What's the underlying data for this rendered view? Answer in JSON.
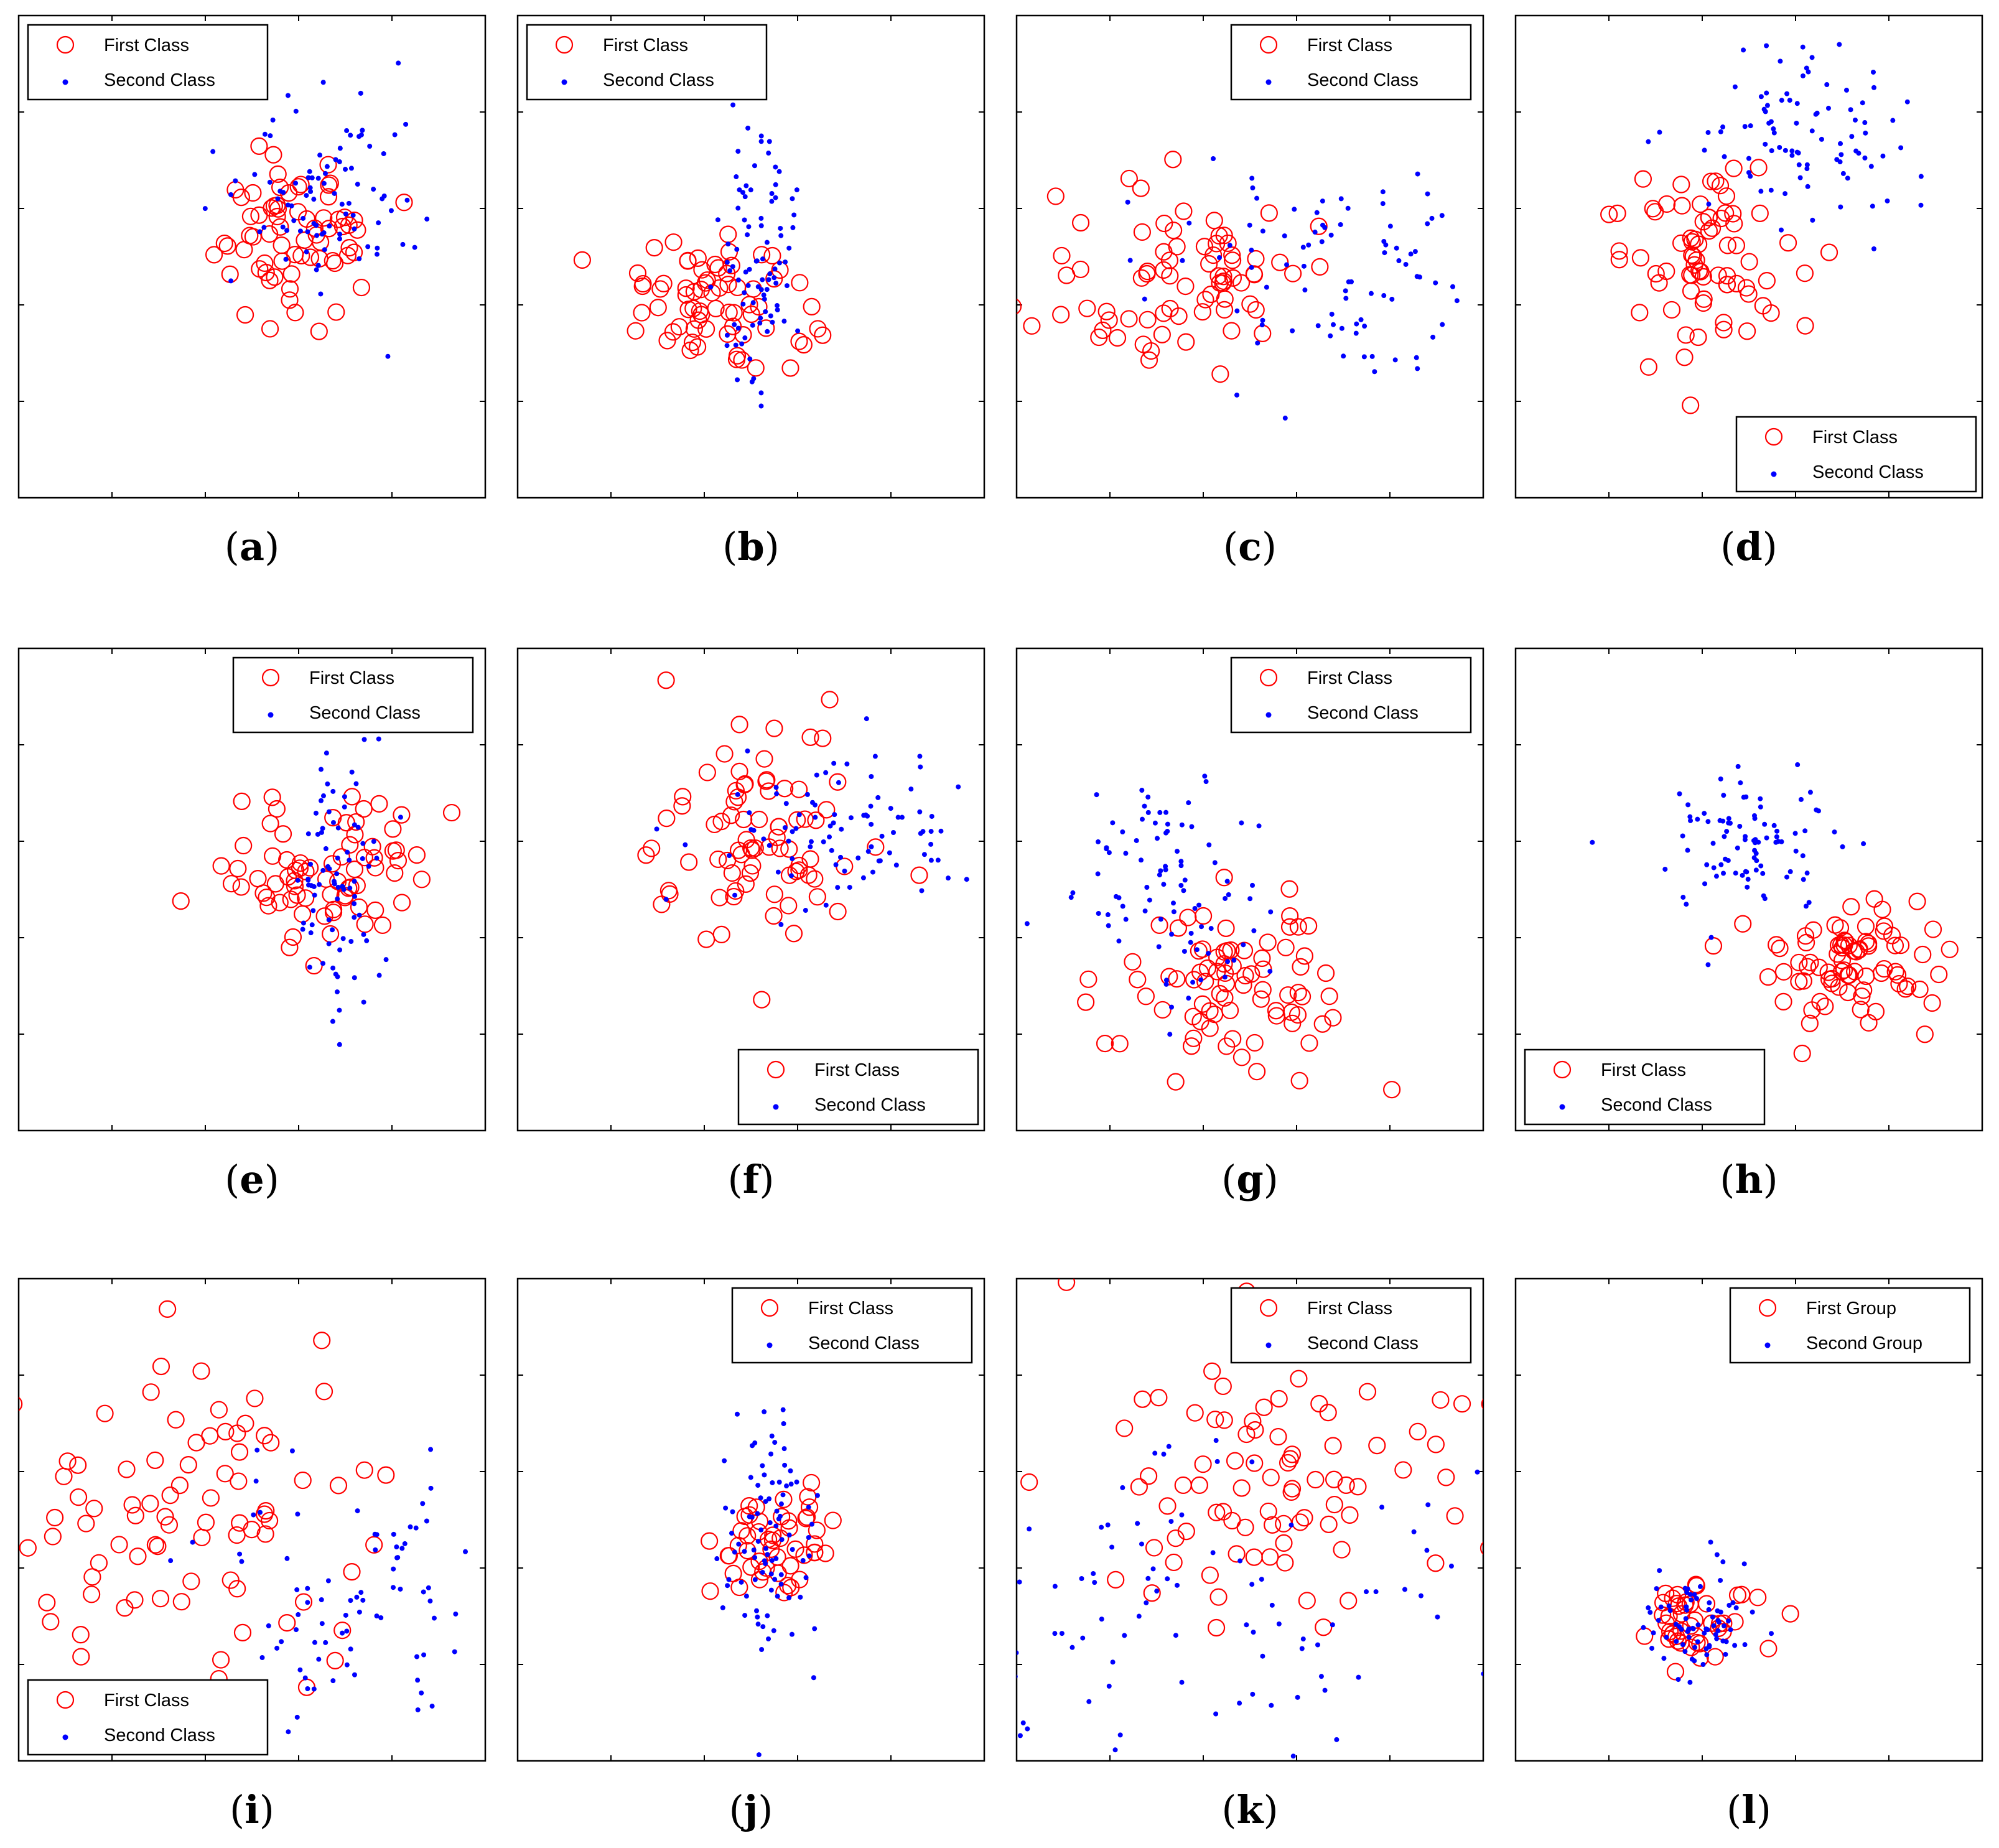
{
  "colors": {
    "first": "#ff0000",
    "second": "#0000ff",
    "axis": "#000000"
  },
  "chart_data": [
    {
      "panel": "a",
      "label_open": "(",
      "label_letter": "a",
      "label_close": ")",
      "type": "scatter",
      "xlim": [
        0,
        10
      ],
      "ylim": [
        0,
        10
      ],
      "legend_position": "top-left",
      "series": [
        {
          "name": "First Class",
          "marker": "circle-open",
          "color": "#ff0000",
          "cluster": {
            "center": [
              5.8,
              5.4
            ],
            "spread": [
              0.9,
              0.9
            ],
            "count": 70
          }
        },
        {
          "name": "Second Class",
          "marker": "dot",
          "color": "#0000ff",
          "cluster": {
            "center": [
              6.6,
              6.3
            ],
            "spread": [
              0.9,
              1.0
            ],
            "count": 90
          }
        }
      ]
    },
    {
      "panel": "b",
      "label_open": "(",
      "label_letter": "b",
      "label_close": ")",
      "type": "scatter",
      "xlim": [
        0,
        10
      ],
      "ylim": [
        0,
        10
      ],
      "legend_position": "top-left",
      "series": [
        {
          "name": "First Class",
          "marker": "circle-open",
          "color": "#ff0000",
          "cluster": {
            "center": [
              4.3,
              4.1
            ],
            "spread": [
              0.9,
              0.9
            ],
            "count": 70
          }
        },
        {
          "name": "Second Class",
          "marker": "dot",
          "color": "#0000ff",
          "cluster": {
            "center": [
              5.2,
              4.7
            ],
            "spread": [
              0.4,
              1.5
            ],
            "count": 90
          }
        }
      ]
    },
    {
      "panel": "c",
      "label_open": "(",
      "label_letter": "c",
      "label_close": ")",
      "type": "scatter",
      "xlim": [
        0,
        10
      ],
      "ylim": [
        0,
        10
      ],
      "legend_position": "top-right",
      "series": [
        {
          "name": "First Class",
          "marker": "circle-open",
          "color": "#ff0000",
          "cluster": {
            "center": [
              3.5,
              4.5
            ],
            "spread": [
              1.4,
              0.9
            ],
            "count": 75
          }
        },
        {
          "name": "Second Class",
          "marker": "dot",
          "color": "#0000ff",
          "cluster": {
            "center": [
              6.8,
              4.8
            ],
            "spread": [
              1.6,
              1.1
            ],
            "count": 90
          }
        }
      ]
    },
    {
      "panel": "d",
      "label_open": "(",
      "label_letter": "d",
      "label_close": ")",
      "type": "scatter",
      "xlim": [
        0,
        10
      ],
      "ylim": [
        0,
        10
      ],
      "legend_position": "bottom-right",
      "series": [
        {
          "name": "First Class",
          "marker": "circle-open",
          "color": "#ff0000",
          "cluster": {
            "center": [
              4.3,
              5.0
            ],
            "spread": [
              1.0,
              0.9
            ],
            "count": 75
          }
        },
        {
          "name": "Second Class",
          "marker": "dot",
          "color": "#0000ff",
          "cluster": {
            "center": [
              6.2,
              7.6
            ],
            "spread": [
              1.1,
              0.9
            ],
            "count": 90
          }
        }
      ]
    },
    {
      "panel": "e",
      "label_open": "(",
      "label_letter": "e",
      "label_close": ")",
      "type": "scatter",
      "xlim": [
        0,
        10
      ],
      "ylim": [
        0,
        10
      ],
      "legend_position": "top-right",
      "series": [
        {
          "name": "First Class",
          "marker": "circle-open",
          "color": "#ff0000",
          "cluster": {
            "center": [
              6.6,
              5.5
            ],
            "spread": [
              1.3,
              0.8
            ],
            "count": 75
          }
        },
        {
          "name": "Second Class",
          "marker": "dot",
          "color": "#0000ff",
          "cluster": {
            "center": [
              6.8,
              5.4
            ],
            "spread": [
              0.5,
              1.3
            ],
            "count": 85
          }
        }
      ]
    },
    {
      "panel": "f",
      "label_open": "(",
      "label_letter": "f",
      "label_close": ")",
      "type": "scatter",
      "xlim": [
        0,
        10
      ],
      "ylim": [
        0,
        10
      ],
      "legend_position": "bottom-right",
      "series": [
        {
          "name": "First Class",
          "marker": "circle-open",
          "color": "#ff0000",
          "cluster": {
            "center": [
              5.1,
              6.2
            ],
            "spread": [
              1.1,
              1.4
            ],
            "count": 80
          }
        },
        {
          "name": "Second Class",
          "marker": "dot",
          "color": "#0000ff",
          "cluster": {
            "center": [
              6.9,
              6.3
            ],
            "spread": [
              1.4,
              0.9
            ],
            "count": 90
          }
        }
      ]
    },
    {
      "panel": "g",
      "label_open": "(",
      "label_letter": "g",
      "label_close": ")",
      "type": "scatter",
      "xlim": [
        0,
        10
      ],
      "ylim": [
        0,
        10
      ],
      "legend_position": "top-right",
      "series": [
        {
          "name": "First Class",
          "marker": "circle-open",
          "color": "#ff0000",
          "cluster": {
            "center": [
              4.5,
              3.0
            ],
            "spread": [
              1.4,
              0.9
            ],
            "count": 80
          }
        },
        {
          "name": "Second Class",
          "marker": "dot",
          "color": "#0000ff",
          "cluster": {
            "center": [
              3.3,
              5.0
            ],
            "spread": [
              1.0,
              1.2
            ],
            "count": 90
          }
        }
      ]
    },
    {
      "panel": "h",
      "label_open": "(",
      "label_letter": "h",
      "label_close": ")",
      "type": "scatter",
      "xlim": [
        0,
        10
      ],
      "ylim": [
        0,
        10
      ],
      "legend_position": "bottom-left",
      "series": [
        {
          "name": "First Class",
          "marker": "circle-open",
          "color": "#ff0000",
          "cluster": {
            "center": [
              7.0,
              3.5
            ],
            "spread": [
              1.0,
              0.7
            ],
            "count": 80
          }
        },
        {
          "name": "Second Class",
          "marker": "dot",
          "color": "#0000ff",
          "cluster": {
            "center": [
              5.1,
              6.1
            ],
            "spread": [
              0.9,
              0.8
            ],
            "count": 90
          }
        }
      ]
    },
    {
      "panel": "i",
      "label_open": "(",
      "label_letter": "i",
      "label_close": ")",
      "type": "scatter",
      "xlim": [
        0,
        10
      ],
      "ylim": [
        0,
        10
      ],
      "legend_position": "bottom-left",
      "series": [
        {
          "name": "First Class",
          "marker": "circle-open",
          "color": "#ff0000",
          "cluster": {
            "center": [
              3.5,
              5.0
            ],
            "spread": [
              1.8,
              1.6
            ],
            "count": 85
          }
        },
        {
          "name": "Second Class",
          "marker": "dot",
          "color": "#0000ff",
          "cluster": {
            "center": [
              7.2,
              3.3
            ],
            "spread": [
              1.8,
              1.5
            ],
            "count": 90
          }
        }
      ]
    },
    {
      "panel": "j",
      "label_open": "(",
      "label_letter": "j",
      "label_close": ")",
      "type": "scatter",
      "xlim": [
        0,
        10
      ],
      "ylim": [
        0,
        10
      ],
      "legend_position": "top-right",
      "series": [
        {
          "name": "First Class",
          "marker": "circle-open",
          "color": "#ff0000",
          "cluster": {
            "center": [
              5.4,
              4.5
            ],
            "spread": [
              0.6,
              0.5
            ],
            "count": 50
          }
        },
        {
          "name": "Second Class",
          "marker": "dot",
          "color": "#0000ff",
          "cluster": {
            "center": [
              5.4,
              4.5
            ],
            "spread": [
              0.5,
              1.3
            ],
            "count": 90
          }
        }
      ]
    },
    {
      "panel": "k",
      "label_open": "(",
      "label_letter": "k",
      "label_close": ")",
      "type": "scatter",
      "xlim": [
        0,
        10
      ],
      "ylim": [
        0,
        10
      ],
      "legend_position": "top-right",
      "series": [
        {
          "name": "First Class",
          "marker": "circle-open",
          "color": "#ff0000",
          "cluster": {
            "center": [
              5.6,
              5.8
            ],
            "spread": [
              1.9,
              1.6
            ],
            "count": 85
          }
        },
        {
          "name": "Second Class",
          "marker": "dot",
          "color": "#0000ff",
          "cluster": {
            "center": [
              4.0,
              3.5
            ],
            "spread": [
              2.5,
              1.8
            ],
            "count": 90
          }
        }
      ]
    },
    {
      "panel": "l",
      "label_open": "(",
      "label_letter": "l",
      "label_close": ")",
      "type": "scatter",
      "xlim": [
        0,
        10
      ],
      "ylim": [
        0,
        10
      ],
      "legend_position": "top-right",
      "series": [
        {
          "name": "First Group",
          "marker": "circle-open",
          "color": "#ff0000",
          "cluster": {
            "center": [
              3.8,
              2.9
            ],
            "spread": [
              0.6,
              0.5
            ],
            "count": 45
          }
        },
        {
          "name": "Second Group",
          "marker": "dot",
          "color": "#0000ff",
          "cluster": {
            "center": [
              3.9,
              2.9
            ],
            "spread": [
              0.6,
              0.6
            ],
            "count": 80
          }
        }
      ]
    }
  ]
}
